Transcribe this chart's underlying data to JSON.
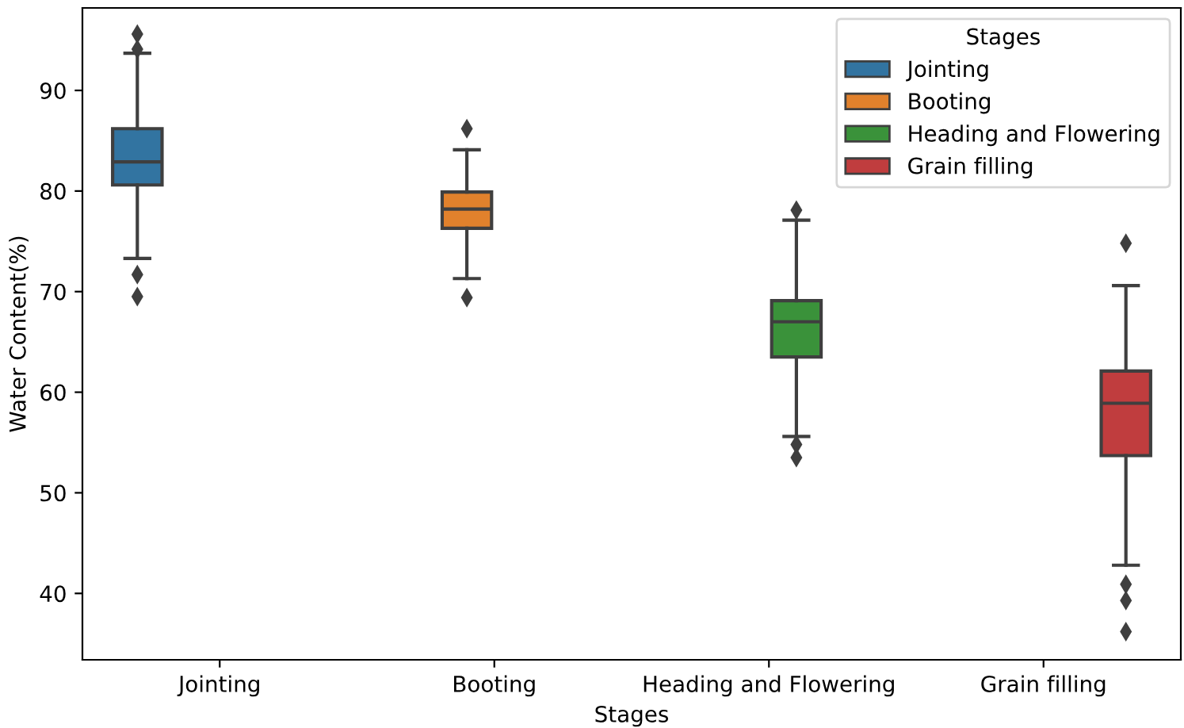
{
  "chart_data": {
    "type": "box",
    "xlabel": "Stages",
    "ylabel": "Water Content(%)",
    "legend_title": "Stages",
    "legend": "top right",
    "grid": false,
    "marker": "diamond",
    "categories": [
      "Jointing",
      "Booting",
      "Heading and Flowering",
      "Grain filling"
    ],
    "ylim": [
      33.4,
      98.2
    ],
    "yticks": [
      40,
      50,
      60,
      70,
      80,
      90
    ],
    "series": [
      {
        "name": "Jointing",
        "color": "#3274a1",
        "boxes": [
          {
            "low": 73.3,
            "q1": 80.6,
            "median": 82.9,
            "q3": 86.2,
            "high": 93.7,
            "outliers": [
              95.6,
              94.1,
              71.7,
              69.5
            ]
          },
          null,
          null,
          null
        ]
      },
      {
        "name": "Booting",
        "color": "#e1812c",
        "boxes": [
          null,
          {
            "low": 71.3,
            "q1": 76.3,
            "median": 78.2,
            "q3": 79.9,
            "high": 84.1,
            "outliers": [
              86.2,
              69.4
            ]
          },
          null,
          null
        ]
      },
      {
        "name": "Heading and Flowering",
        "color": "#3a923a",
        "boxes": [
          null,
          null,
          {
            "low": 55.6,
            "q1": 63.5,
            "median": 67.0,
            "q3": 69.1,
            "high": 77.1,
            "outliers": [
              78.1,
              54.8,
              53.5
            ]
          },
          null
        ]
      },
      {
        "name": "Grain filling",
        "color": "#c03d3e",
        "boxes": [
          null,
          null,
          null,
          {
            "low": 42.8,
            "q1": 53.7,
            "median": 58.9,
            "q3": 62.1,
            "high": 70.6,
            "outliers": [
              74.8,
              40.9,
              39.3,
              36.2
            ]
          }
        ]
      }
    ]
  }
}
